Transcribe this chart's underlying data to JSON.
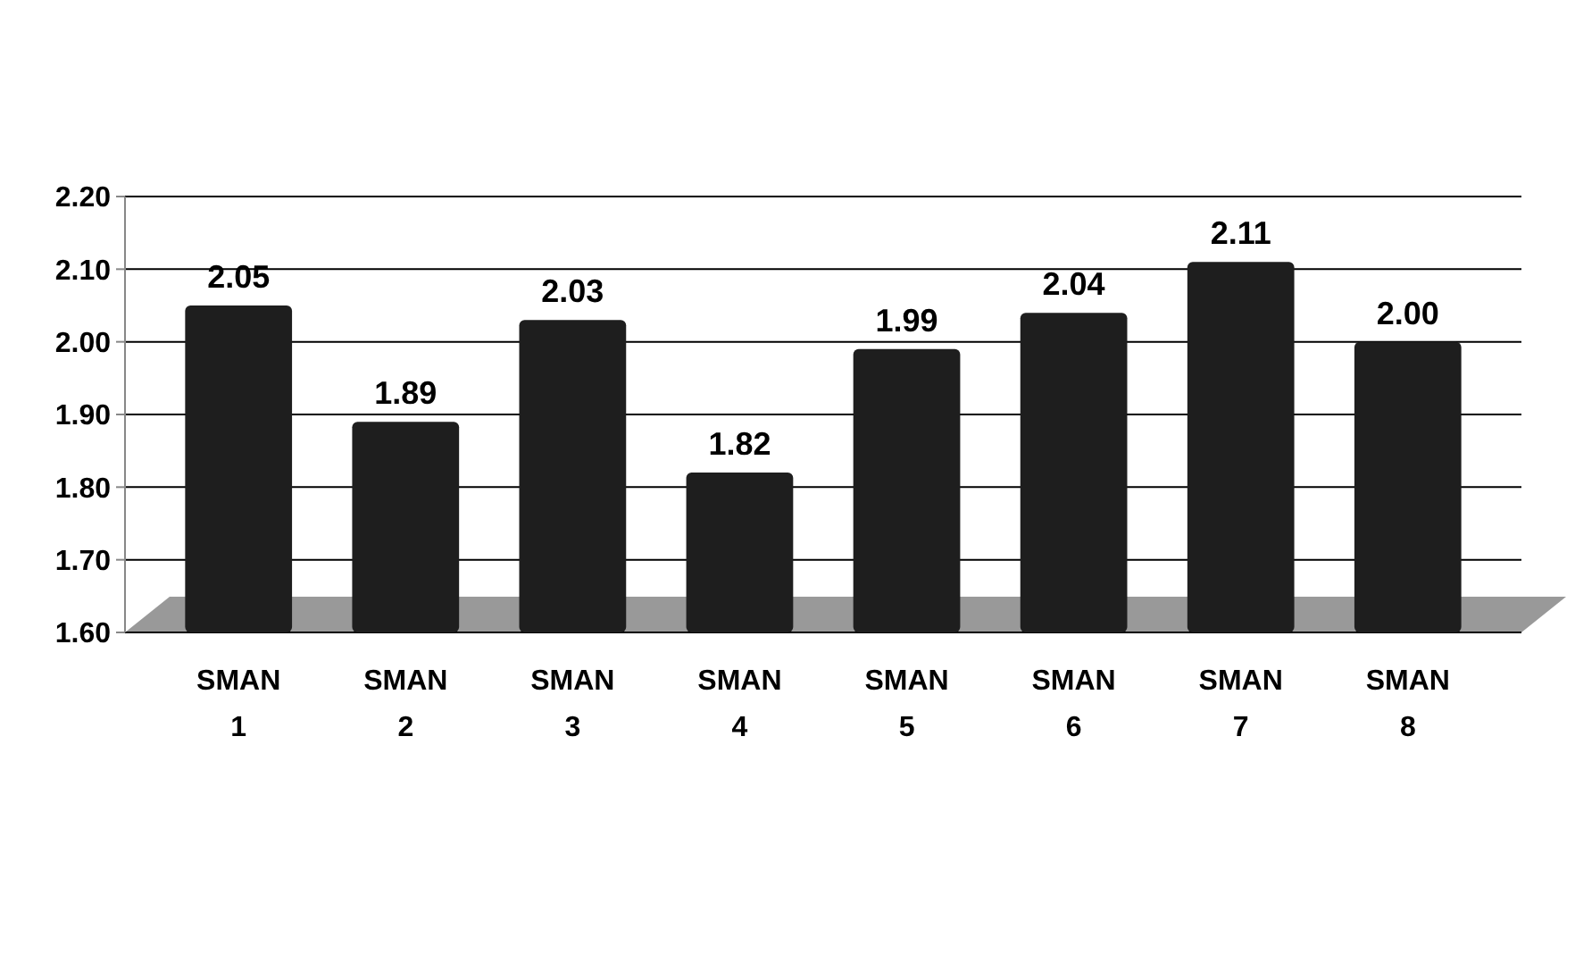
{
  "chart_data": {
    "type": "bar",
    "categories": [
      "SMAN 1",
      "SMAN 2",
      "SMAN 3",
      "SMAN 4",
      "SMAN 5",
      "SMAN 6",
      "SMAN 7",
      "SMAN 8"
    ],
    "values": [
      2.05,
      1.89,
      2.03,
      1.82,
      1.99,
      2.04,
      2.11,
      2.0
    ],
    "value_labels": [
      "2.05",
      "1.89",
      "2.03",
      "1.82",
      "1.99",
      "2.04",
      "2.11",
      "2.00"
    ],
    "color": "#1e1e1e",
    "ylim": [
      1.6,
      2.2
    ],
    "yticks": [
      {
        "value": 1.6,
        "label": "1.60"
      },
      {
        "value": 1.7,
        "label": "1.70"
      },
      {
        "value": 1.8,
        "label": "1.80"
      },
      {
        "value": 1.9,
        "label": "1.90"
      },
      {
        "value": 2.0,
        "label": "2.00"
      },
      {
        "value": 2.1,
        "label": "2.10"
      },
      {
        "value": 2.2,
        "label": "2.20"
      }
    ],
    "grid": "y"
  }
}
